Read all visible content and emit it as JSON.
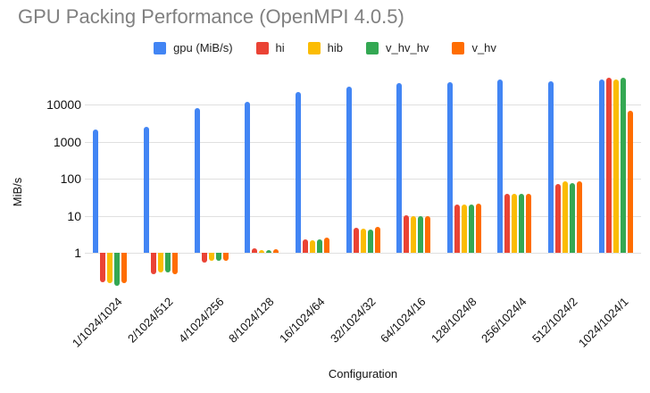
{
  "chart_data": {
    "type": "bar",
    "title": "GPU Packing Performance (OpenMPI 4.0.5)",
    "xlabel": "Configuration",
    "ylabel": "MiB/s",
    "y_scale": "log",
    "baseline": 1,
    "grid": true,
    "gridline_color": "#e0e0e0",
    "title_color": "#808080",
    "legend_position": "top",
    "yticks": [
      1,
      10,
      100,
      1000,
      10000
    ],
    "ylim": [
      0.1,
      60000
    ],
    "categories": [
      "1/1024/1024",
      "2/1024/512",
      "4/1024/256",
      "8/1024/128",
      "16/1024/64",
      "32/1024/32",
      "64/1024/16",
      "128/1024/8",
      "256/1024/4",
      "512/1024/2",
      "1024/1024/1"
    ],
    "series": [
      {
        "name": "gpu (MiB/s)",
        "color": "#4285F4",
        "values": [
          2100,
          2500,
          7800,
          12000,
          22000,
          31000,
          38000,
          41000,
          46000,
          43000,
          48000
        ]
      },
      {
        "name": "hi",
        "color": "#EA4335",
        "values": [
          0.16,
          0.27,
          0.55,
          1.3,
          2.3,
          4.7,
          10.5,
          20,
          38,
          72,
          52000
        ]
      },
      {
        "name": "hib",
        "color": "#FBBC04",
        "values": [
          0.15,
          0.29,
          0.6,
          1.2,
          2.2,
          4.5,
          9.5,
          20,
          40,
          85,
          46000
        ]
      },
      {
        "name": "v_hv_hv",
        "color": "#34A853",
        "values": [
          0.13,
          0.3,
          0.6,
          1.2,
          2.3,
          4.3,
          10,
          20,
          40,
          75,
          53000
        ]
      },
      {
        "name": "v_hv",
        "color": "#FF6D01",
        "values": [
          0.15,
          0.27,
          0.6,
          1.25,
          2.6,
          5.0,
          10,
          21,
          40,
          85,
          6600
        ]
      }
    ]
  }
}
